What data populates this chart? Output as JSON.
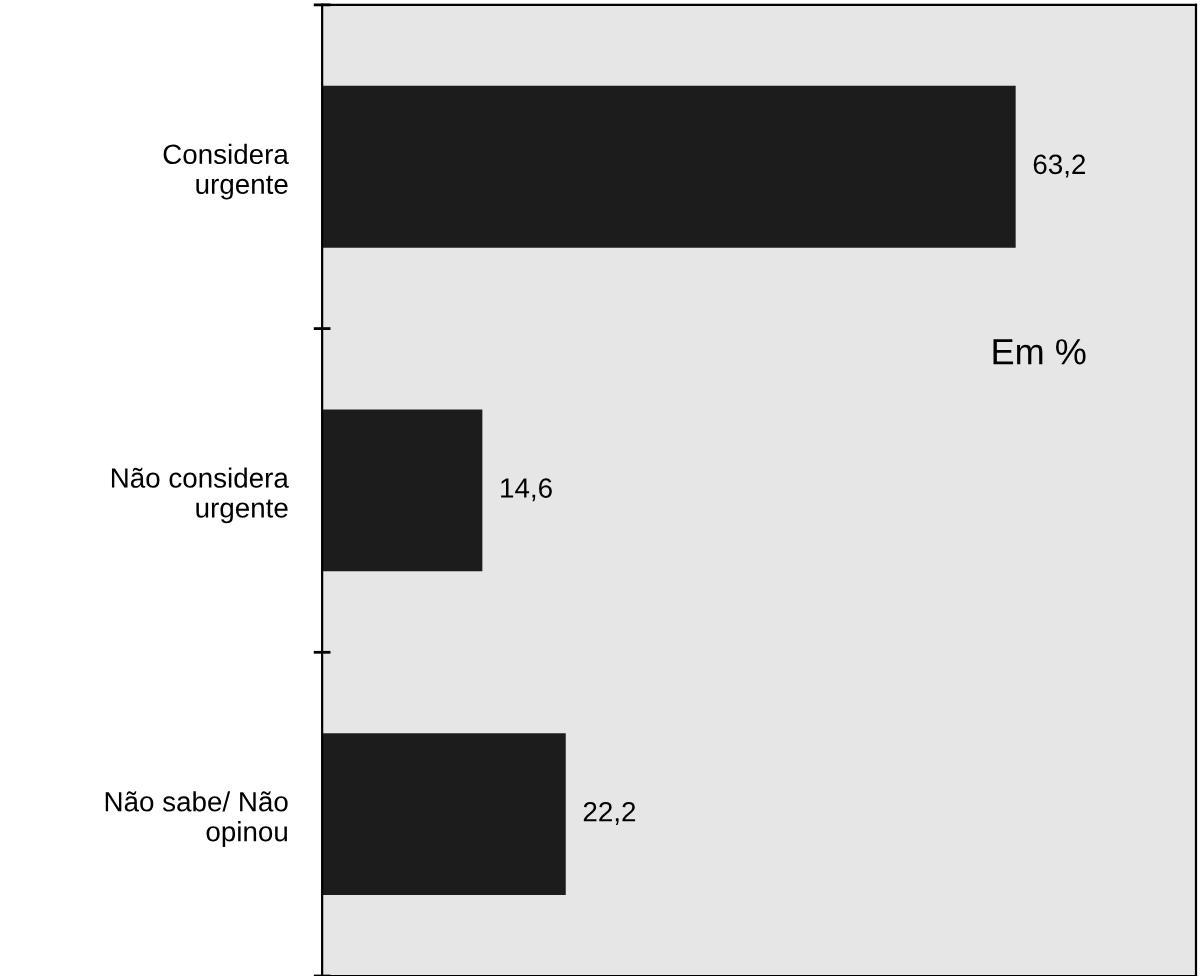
{
  "chart_data": {
    "type": "bar",
    "orientation": "horizontal",
    "categories": [
      "Considera\nurgente",
      "Não considera\nurgente",
      "Não sabe/ Não\nopinou"
    ],
    "values": [
      63.2,
      14.6,
      22.2
    ],
    "value_labels": [
      "63,2",
      "14,6",
      "22,2"
    ],
    "color": "#1c1c1c",
    "annotations": [
      "Em %"
    ],
    "grid": false,
    "legend": false
  }
}
